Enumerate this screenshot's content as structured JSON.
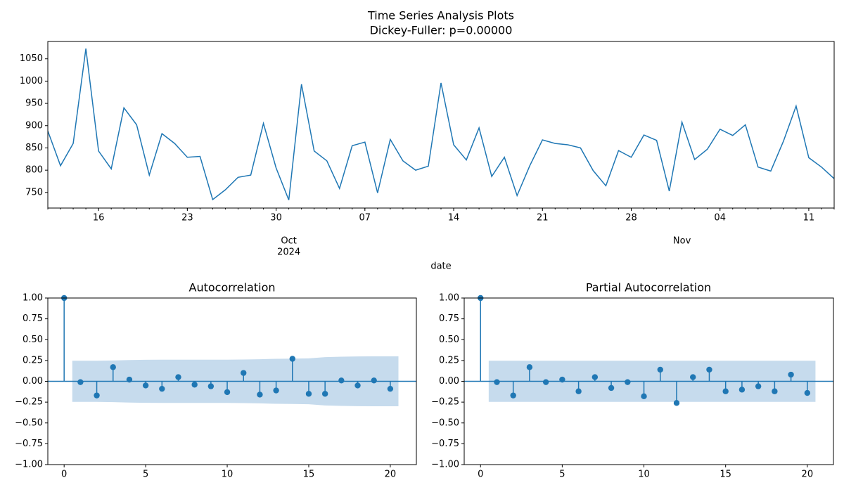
{
  "chart_data": [
    {
      "type": "line",
      "title": "Time Series Analysis Plots",
      "subtitle": "Dickey-Fuller: p=0.00000",
      "x_label": "date",
      "color": "#1f77b4",
      "x": [
        "2024-09-12",
        "2024-09-13",
        "2024-09-14",
        "2024-09-15",
        "2024-09-16",
        "2024-09-17",
        "2024-09-18",
        "2024-09-19",
        "2024-09-20",
        "2024-09-21",
        "2024-09-22",
        "2024-09-23",
        "2024-09-24",
        "2024-09-25",
        "2024-09-26",
        "2024-09-27",
        "2024-09-28",
        "2024-09-29",
        "2024-09-30",
        "2024-10-01",
        "2024-10-02",
        "2024-10-03",
        "2024-10-04",
        "2024-10-05",
        "2024-10-06",
        "2024-10-07",
        "2024-10-08",
        "2024-10-09",
        "2024-10-10",
        "2024-10-11",
        "2024-10-12",
        "2024-10-13",
        "2024-10-14",
        "2024-10-15",
        "2024-10-16",
        "2024-10-17",
        "2024-10-18",
        "2024-10-19",
        "2024-10-20",
        "2024-10-21",
        "2024-10-22",
        "2024-10-23",
        "2024-10-24",
        "2024-10-25",
        "2024-10-26",
        "2024-10-27",
        "2024-10-28",
        "2024-10-29",
        "2024-10-30",
        "2024-10-31",
        "2024-11-01",
        "2024-11-02",
        "2024-11-03",
        "2024-11-04",
        "2024-11-05",
        "2024-11-06",
        "2024-11-07",
        "2024-11-08",
        "2024-11-09",
        "2024-11-10",
        "2024-11-11",
        "2024-11-12",
        "2024-11-13"
      ],
      "values": [
        888,
        810,
        860,
        1073,
        843,
        803,
        940,
        902,
        789,
        882,
        860,
        829,
        831,
        734,
        756,
        784,
        789,
        905,
        805,
        733,
        993,
        843,
        821,
        759,
        855,
        863,
        749,
        869,
        821,
        800,
        809,
        996,
        857,
        823,
        895,
        786,
        829,
        743,
        810,
        868,
        860,
        857,
        850,
        799,
        765,
        844,
        829,
        879,
        867,
        753,
        908,
        824,
        847,
        892,
        878,
        902,
        807,
        798,
        865,
        944,
        828,
        807,
        781
      ],
      "xlim": [
        "2024-09-12",
        "2024-11-13"
      ],
      "xticks": [
        {
          "value": "2024-09-16",
          "label": "16"
        },
        {
          "value": "2024-09-23",
          "label": "23"
        },
        {
          "value": "2024-09-30",
          "label": "30"
        },
        {
          "value": "2024-10-07",
          "label": "07"
        },
        {
          "value": "2024-10-14",
          "label": "14"
        },
        {
          "value": "2024-10-21",
          "label": "21"
        },
        {
          "value": "2024-10-28",
          "label": "28"
        },
        {
          "value": "2024-11-04",
          "label": "04"
        },
        {
          "value": "2024-11-11",
          "label": "11"
        }
      ],
      "month_ticks": [
        {
          "value": "2024-10-01",
          "label": "Oct"
        },
        {
          "value": "2024-11-01",
          "label": "Nov"
        }
      ],
      "year_ticks": [
        {
          "value": "2024-10-01",
          "label": "2024"
        }
      ],
      "ylim": [
        715,
        1089
      ],
      "yticks": [
        750,
        800,
        850,
        900,
        950,
        1000,
        1050
      ]
    },
    {
      "type": "stem",
      "title": "Autocorrelation",
      "color": "#1f77b4",
      "band_color": "#c6dbed",
      "lags": [
        0,
        1,
        2,
        3,
        4,
        5,
        6,
        7,
        8,
        9,
        10,
        11,
        12,
        13,
        14,
        15,
        16,
        17,
        18,
        19,
        20
      ],
      "values": [
        1.0,
        -0.01,
        -0.17,
        0.17,
        0.02,
        -0.05,
        -0.09,
        0.05,
        -0.04,
        -0.06,
        -0.13,
        0.1,
        -0.16,
        -0.11,
        0.27,
        -0.15,
        -0.15,
        0.01,
        -0.05,
        0.01,
        -0.09
      ],
      "band": [
        0.247,
        0.247,
        0.25,
        0.255,
        0.258,
        0.26,
        0.26,
        0.26,
        0.26,
        0.26,
        0.262,
        0.265,
        0.27,
        0.272,
        0.275,
        0.29,
        0.295,
        0.298,
        0.3,
        0.3
      ],
      "xlim": [
        -1,
        21.6
      ],
      "xticks": [
        0,
        5,
        10,
        15,
        20
      ],
      "ylim": [
        -1,
        1
      ],
      "yticks": [
        {
          "value": -1,
          "label": "−1.00"
        },
        {
          "value": -0.75,
          "label": "−0.75"
        },
        {
          "value": -0.5,
          "label": "−0.50"
        },
        {
          "value": -0.25,
          "label": "−0.25"
        },
        {
          "value": 0,
          "label": "0.00"
        },
        {
          "value": 0.25,
          "label": "0.25"
        },
        {
          "value": 0.5,
          "label": "0.50"
        },
        {
          "value": 0.75,
          "label": "0.75"
        },
        {
          "value": 1,
          "label": "1.00"
        }
      ]
    },
    {
      "type": "stem",
      "title": "Partial Autocorrelation",
      "color": "#1f77b4",
      "band_color": "#c6dbed",
      "lags": [
        0,
        1,
        2,
        3,
        4,
        5,
        6,
        7,
        8,
        9,
        10,
        11,
        12,
        13,
        14,
        15,
        16,
        17,
        18,
        19,
        20
      ],
      "values": [
        1.0,
        -0.01,
        -0.17,
        0.17,
        -0.01,
        0.02,
        -0.12,
        0.05,
        -0.08,
        -0.01,
        -0.18,
        0.14,
        -0.26,
        0.05,
        0.14,
        -0.12,
        -0.1,
        -0.06,
        -0.12,
        0.08,
        -0.14
      ],
      "band": [
        0.247,
        0.247,
        0.247,
        0.247,
        0.247,
        0.247,
        0.247,
        0.247,
        0.247,
        0.247,
        0.247,
        0.247,
        0.247,
        0.247,
        0.247,
        0.247,
        0.247,
        0.247,
        0.247,
        0.247
      ],
      "xlim": [
        -1,
        21.6
      ],
      "xticks": [
        0,
        5,
        10,
        15,
        20
      ],
      "ylim": [
        -1,
        1
      ],
      "yticks": [
        {
          "value": -1,
          "label": "−1.00"
        },
        {
          "value": -0.75,
          "label": "−0.75"
        },
        {
          "value": -0.5,
          "label": "−0.50"
        },
        {
          "value": -0.25,
          "label": "−0.25"
        },
        {
          "value": 0,
          "label": "0.00"
        },
        {
          "value": 0.25,
          "label": "0.25"
        },
        {
          "value": 0.5,
          "label": "0.50"
        },
        {
          "value": 0.75,
          "label": "0.75"
        },
        {
          "value": 1,
          "label": "1.00"
        }
      ]
    }
  ]
}
